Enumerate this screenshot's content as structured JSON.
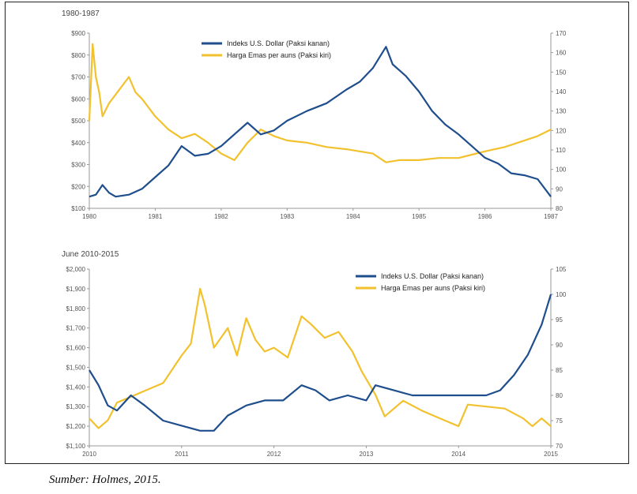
{
  "caption": "Sumber: Holmes, 2015.",
  "colors": {
    "usd": "#1f4e8c",
    "gold": "#f2c12e",
    "axis": "#999999"
  },
  "chart_data": [
    {
      "type": "line",
      "title": "1980-1987",
      "x_ticks": [
        "1980",
        "1981",
        "1982",
        "1983",
        "1984",
        "1985",
        "1986",
        "1987"
      ],
      "xlim": [
        1980,
        1987
      ],
      "y_left_ticks": [
        "$900",
        "$800",
        "$700",
        "$600",
        "$500",
        "$400",
        "$300",
        "$200",
        "$100"
      ],
      "y_left_lim": [
        100,
        900
      ],
      "y_right_ticks": [
        "170",
        "160",
        "150",
        "140",
        "130",
        "120",
        "110",
        "100",
        "90",
        "80"
      ],
      "y_right_lim": [
        80,
        170
      ],
      "legend": [
        "Indeks U.S. Dollar (Paksi kanan)",
        "Harga Emas per auns (Paksi kiri)"
      ],
      "series": [
        {
          "name": "Indeks U.S. Dollar (Paksi kanan)",
          "axis": "right",
          "x": [
            1980.0,
            1980.1,
            1980.2,
            1980.3,
            1980.4,
            1980.6,
            1980.8,
            1981.0,
            1981.2,
            1981.4,
            1981.6,
            1981.8,
            1982.0,
            1982.2,
            1982.4,
            1982.6,
            1982.8,
            1983.0,
            1983.3,
            1983.6,
            1983.9,
            1984.1,
            1984.3,
            1984.5,
            1984.6,
            1984.8,
            1985.0,
            1985.2,
            1985.4,
            1985.6,
            1985.8,
            1986.0,
            1986.2,
            1986.4,
            1986.6,
            1986.8,
            1987.0
          ],
          "values": [
            86,
            87,
            92,
            88,
            86,
            87,
            90,
            96,
            102,
            112,
            107,
            108,
            112,
            118,
            124,
            118,
            120,
            125,
            130,
            134,
            141,
            145,
            152,
            163,
            154,
            148,
            140,
            130,
            123,
            118,
            112,
            106,
            103,
            98,
            97,
            95,
            86
          ]
        },
        {
          "name": "Harga Emas per auns (Paksi kiri)",
          "axis": "left",
          "x": [
            1980.0,
            1980.05,
            1980.1,
            1980.15,
            1980.2,
            1980.3,
            1980.4,
            1980.5,
            1980.6,
            1980.7,
            1980.8,
            1980.9,
            1981.0,
            1981.2,
            1981.4,
            1981.6,
            1981.8,
            1982.0,
            1982.2,
            1982.4,
            1982.6,
            1982.8,
            1983.0,
            1983.3,
            1983.6,
            1983.9,
            1984.1,
            1984.3,
            1984.5,
            1984.7,
            1985.0,
            1985.3,
            1985.6,
            1985.8,
            1986.0,
            1986.3,
            1986.5,
            1986.8,
            1987.0
          ],
          "values": [
            500,
            850,
            700,
            630,
            520,
            580,
            620,
            660,
            700,
            630,
            600,
            560,
            520,
            460,
            420,
            440,
            400,
            350,
            320,
            400,
            460,
            430,
            410,
            400,
            380,
            370,
            360,
            350,
            310,
            320,
            320,
            330,
            330,
            345,
            360,
            380,
            400,
            430,
            460
          ]
        }
      ]
    },
    {
      "type": "line",
      "title": "June 2010-2015",
      "x_ticks": [
        "2010",
        "2011",
        "2012",
        "2013",
        "2014",
        "2015"
      ],
      "xlim": [
        2010,
        2015
      ],
      "y_left_ticks": [
        "$2,000",
        "$1,900",
        "$1,800",
        "$1,700",
        "$1,600",
        "$1,500",
        "$1,400",
        "$1,300",
        "$1,200",
        "$1,100"
      ],
      "y_left_lim": [
        1100,
        2000
      ],
      "y_right_ticks": [
        "105",
        "100",
        "95",
        "90",
        "85",
        "80",
        "75",
        "70"
      ],
      "y_right_lim": [
        70,
        105
      ],
      "legend": [
        "Indeks U.S. Dollar (Paksi kanan)",
        "Harga Emas per auns (Paksi  kiri)"
      ],
      "series": [
        {
          "name": "Indeks U.S. Dollar (Paksi kanan)",
          "axis": "right",
          "x": [
            2010.0,
            2010.1,
            2010.2,
            2010.3,
            2010.45,
            2010.6,
            2010.8,
            2011.0,
            2011.2,
            2011.35,
            2011.5,
            2011.7,
            2011.9,
            2012.1,
            2012.3,
            2012.45,
            2012.6,
            2012.8,
            2013.0,
            2013.1,
            2013.3,
            2013.5,
            2013.7,
            2013.9,
            2014.1,
            2014.3,
            2014.45,
            2014.6,
            2014.75,
            2014.9,
            2015.0
          ],
          "values": [
            85,
            82,
            78,
            77,
            80,
            78,
            75,
            74,
            73,
            73,
            76,
            78,
            79,
            79,
            82,
            81,
            79,
            80,
            79,
            82,
            81,
            80,
            80,
            80,
            80,
            80,
            81,
            84,
            88,
            94,
            100
          ]
        },
        {
          "name": "Harga Emas per auns (Paksi  kiri)",
          "axis": "left",
          "x": [
            2010.0,
            2010.1,
            2010.2,
            2010.3,
            2010.45,
            2010.6,
            2010.8,
            2011.0,
            2011.1,
            2011.2,
            2011.25,
            2011.35,
            2011.5,
            2011.6,
            2011.7,
            2011.8,
            2011.9,
            2012.0,
            2012.15,
            2012.3,
            2012.4,
            2012.55,
            2012.7,
            2012.85,
            2012.95,
            2013.1,
            2013.2,
            2013.4,
            2013.6,
            2013.8,
            2014.0,
            2014.1,
            2014.3,
            2014.5,
            2014.7,
            2014.8,
            2014.9,
            2015.0
          ],
          "values": [
            1240,
            1190,
            1230,
            1320,
            1350,
            1380,
            1420,
            1560,
            1620,
            1900,
            1820,
            1600,
            1700,
            1560,
            1750,
            1640,
            1580,
            1600,
            1550,
            1760,
            1720,
            1650,
            1680,
            1580,
            1480,
            1360,
            1250,
            1330,
            1280,
            1240,
            1200,
            1310,
            1300,
            1290,
            1240,
            1200,
            1240,
            1200
          ]
        }
      ]
    }
  ]
}
